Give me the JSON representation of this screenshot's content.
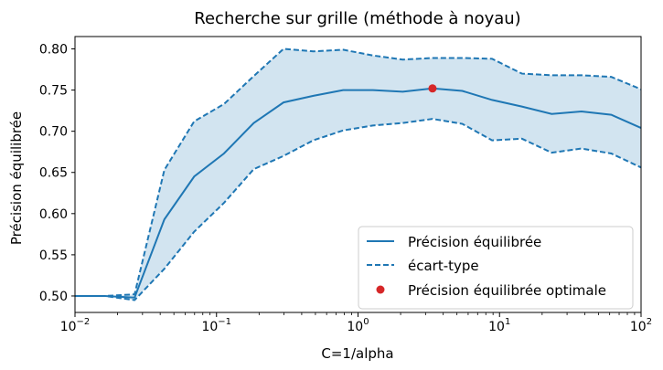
{
  "chart_data": {
    "type": "line",
    "title": "Recherche sur grille (méthode à noyau)",
    "xlabel": "C=1/alpha",
    "ylabel": "Précision équilibrée",
    "x_scale": "log",
    "xlim": [
      0.01,
      100
    ],
    "ylim": [
      0.48,
      0.815
    ],
    "x_ticks": [
      {
        "value": 0.01,
        "base": "10",
        "exp": "−2"
      },
      {
        "value": 0.1,
        "base": "10",
        "exp": "−1"
      },
      {
        "value": 1,
        "base": "10",
        "exp": "0"
      },
      {
        "value": 10,
        "base": "10",
        "exp": "1"
      },
      {
        "value": 100,
        "base": "10",
        "exp": "2"
      }
    ],
    "y_ticks": [
      0.5,
      0.55,
      0.6,
      0.65,
      0.7,
      0.75,
      0.8
    ],
    "y_tick_labels": [
      "0.50",
      "0.55",
      "0.60",
      "0.65",
      "0.70",
      "0.75",
      "0.80"
    ],
    "grid": false,
    "legend_position": "lower-right",
    "x": [
      0.01,
      0.01624,
      0.02637,
      0.04281,
      0.06952,
      0.1129,
      0.1833,
      0.2976,
      0.4833,
      0.7848,
      1.274,
      2.069,
      3.36,
      5.456,
      8.859,
      14.38,
      23.36,
      37.93,
      61.58,
      100
    ],
    "series": [
      {
        "name": "Précision équilibrée",
        "style": "solid",
        "color": "#1f77b4",
        "values": [
          0.5,
          0.5,
          0.498,
          0.593,
          0.645,
          0.673,
          0.71,
          0.735,
          0.743,
          0.75,
          0.75,
          0.748,
          0.752,
          0.749,
          0.738,
          0.73,
          0.721,
          0.724,
          0.72,
          0.704
        ]
      },
      {
        "name": "écart-type",
        "style": "dashed",
        "color": "#1f77b4",
        "upper": [
          0.5,
          0.5,
          0.502,
          0.653,
          0.712,
          0.733,
          0.767,
          0.8,
          0.797,
          0.799,
          0.792,
          0.787,
          0.789,
          0.789,
          0.788,
          0.77,
          0.768,
          0.768,
          0.766,
          0.751
        ],
        "lower": [
          0.5,
          0.5,
          0.495,
          0.533,
          0.578,
          0.613,
          0.654,
          0.67,
          0.689,
          0.701,
          0.707,
          0.71,
          0.715,
          0.709,
          0.689,
          0.691,
          0.674,
          0.679,
          0.673,
          0.656
        ]
      },
      {
        "name": "Précision équilibrée optimale",
        "style": "point",
        "color": "#d62728",
        "x": 3.36,
        "y": 0.752
      }
    ],
    "band_color": "#1f77b4"
  }
}
